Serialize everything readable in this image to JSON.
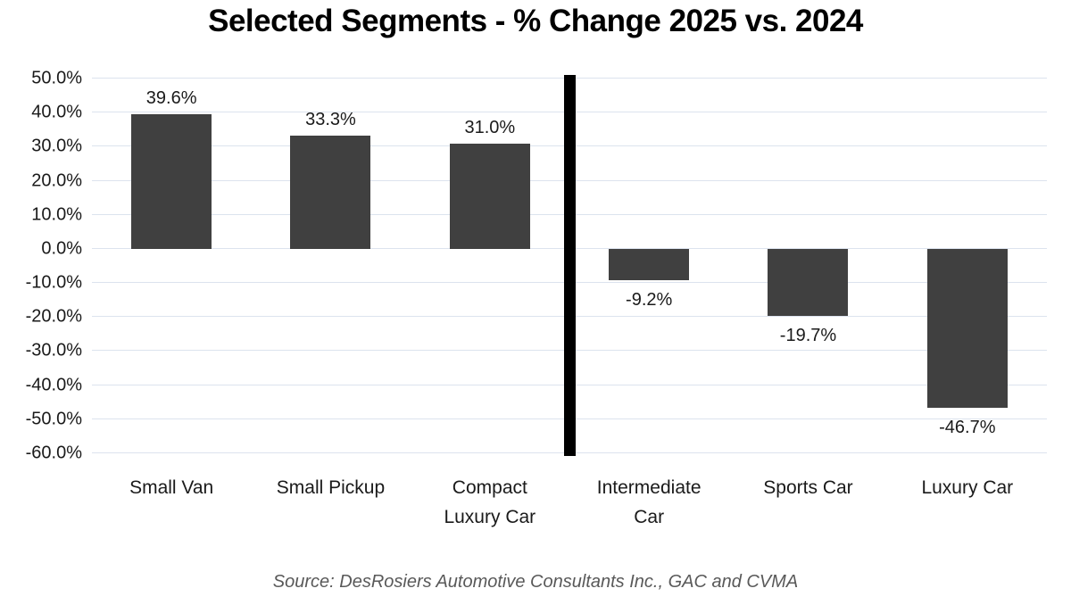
{
  "page": {
    "title": "Selected Segments - % Change 2025 vs. 2024",
    "source_note": "Source: DesRosiers Automotive Consultants Inc., GAC and CVMA"
  },
  "chart_data": {
    "type": "bar",
    "title": "Selected Segments - % Change 2025 vs. 2024",
    "categories": [
      "Small Van",
      "Small Pickup",
      "Compact Luxury Car",
      "Intermediate Car",
      "Sports Car",
      "Luxury Car"
    ],
    "values": [
      39.6,
      33.3,
      31.0,
      -9.2,
      -19.7,
      -46.7
    ],
    "data_labels": [
      "39.6%",
      "33.3%",
      "31.0%",
      "-9.2%",
      "-19.7%",
      "-46.7%"
    ],
    "y_ticks": [
      "50.0%",
      "40.0%",
      "30.0%",
      "20.0%",
      "10.0%",
      "0.0%",
      "-10.0%",
      "-20.0%",
      "-30.0%",
      "-40.0%",
      "-50.0%",
      "-60.0%"
    ],
    "ylim": [
      -60,
      50
    ],
    "xlabel": "",
    "ylabel": "",
    "grid": true,
    "legend": "none",
    "bar_color": "#404040",
    "gridline_color": "#dce3ee",
    "divider": {
      "after_category_index": 2,
      "color": "#000000"
    },
    "source_note": "Source: DesRosiers Automotive Consultants Inc., GAC and CVMA"
  }
}
